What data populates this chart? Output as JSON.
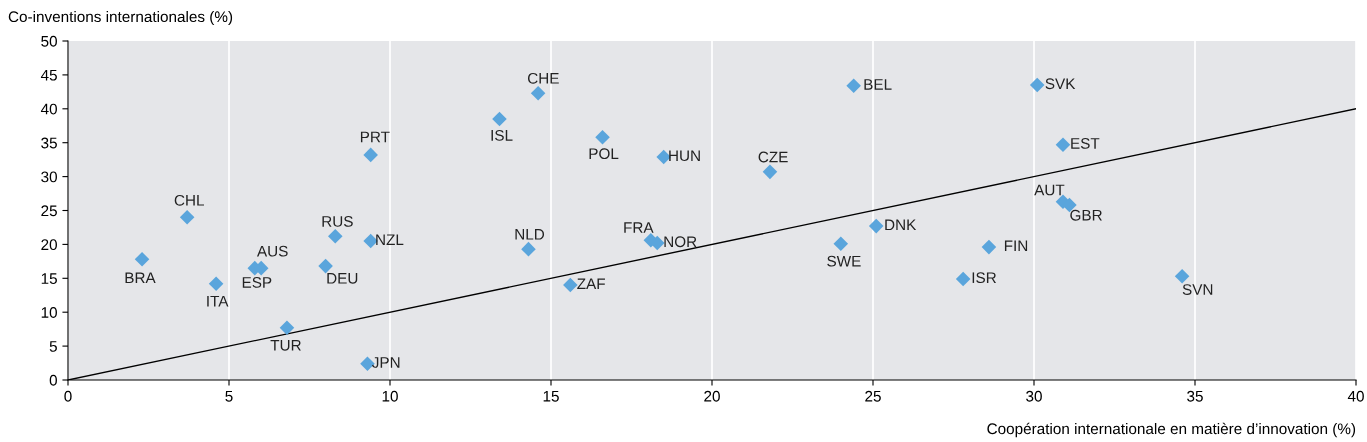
{
  "chart_data": {
    "type": "scatter",
    "xlabel": "Coopération internationale en matière d’innovation (%)",
    "ylabel": "Co-inventions internationales (%)",
    "xlim": [
      0,
      40
    ],
    "ylim": [
      0,
      50
    ],
    "xticks": [
      0,
      5,
      10,
      15,
      20,
      25,
      30,
      35,
      40
    ],
    "yticks": [
      0,
      5,
      10,
      15,
      20,
      25,
      30,
      35,
      40,
      45,
      50
    ],
    "grid": "x",
    "series": [
      {
        "color": "#5aa5dc",
        "marker": "diamond",
        "x": [
          2.3,
          3.7,
          4.6,
          5.8,
          6.0,
          6.8,
          8.0,
          8.3,
          9.3,
          9.4,
          9.4,
          13.4,
          14.3,
          14.6,
          15.6,
          16.6,
          18.1,
          18.3,
          18.5,
          21.8,
          24.0,
          24.4,
          25.1,
          27.8,
          28.6,
          30.1,
          30.9,
          30.9,
          31.1,
          34.6
        ],
        "values": [
          17.8,
          24.0,
          14.2,
          16.5,
          16.5,
          7.7,
          16.8,
          21.2,
          2.4,
          33.2,
          20.5,
          38.5,
          19.3,
          42.3,
          14.0,
          35.8,
          20.6,
          20.2,
          32.9,
          30.7,
          20.1,
          43.4,
          22.7,
          14.9,
          19.6,
          43.5,
          34.7,
          26.3,
          25.8,
          15.3
        ]
      },
      {
        "type": "line",
        "color": "#000000",
        "marker": "none",
        "x": [
          0,
          40
        ],
        "values": [
          0,
          40
        ]
      }
    ],
    "annotations": [
      {
        "text": "BRA",
        "x": 2.3,
        "y": 17.8
      },
      {
        "text": "CHL",
        "x": 3.7,
        "y": 24.0
      },
      {
        "text": "ITA",
        "x": 4.6,
        "y": 14.2
      },
      {
        "text": "ESP",
        "x": 5.8,
        "y": 16.5
      },
      {
        "text": "AUS",
        "x": 6.0,
        "y": 16.5
      },
      {
        "text": "TUR",
        "x": 6.8,
        "y": 7.7
      },
      {
        "text": "DEU",
        "x": 8.0,
        "y": 16.8
      },
      {
        "text": "RUS",
        "x": 8.3,
        "y": 21.2
      },
      {
        "text": "JPN",
        "x": 9.3,
        "y": 2.4
      },
      {
        "text": "PRT",
        "x": 9.4,
        "y": 33.2
      },
      {
        "text": "NZL",
        "x": 9.4,
        "y": 20.5
      },
      {
        "text": "ISL",
        "x": 13.4,
        "y": 38.5
      },
      {
        "text": "NLD",
        "x": 14.3,
        "y": 19.3
      },
      {
        "text": "CHE",
        "x": 14.6,
        "y": 42.3
      },
      {
        "text": "ZAF",
        "x": 15.6,
        "y": 14.0
      },
      {
        "text": "POL",
        "x": 16.6,
        "y": 35.8
      },
      {
        "text": "FRA",
        "x": 18.1,
        "y": 20.6
      },
      {
        "text": "NOR",
        "x": 18.3,
        "y": 20.2
      },
      {
        "text": "HUN",
        "x": 18.5,
        "y": 32.9
      },
      {
        "text": "CZE",
        "x": 21.8,
        "y": 30.7
      },
      {
        "text": "SWE",
        "x": 24.0,
        "y": 20.1
      },
      {
        "text": "BEL",
        "x": 24.4,
        "y": 43.4
      },
      {
        "text": "DNK",
        "x": 25.1,
        "y": 22.7
      },
      {
        "text": "ISR",
        "x": 27.8,
        "y": 14.9
      },
      {
        "text": "FIN",
        "x": 28.6,
        "y": 19.6
      },
      {
        "text": "SVK",
        "x": 30.1,
        "y": 43.5
      },
      {
        "text": "EST",
        "x": 30.9,
        "y": 34.7
      },
      {
        "text": "AUT",
        "x": 30.9,
        "y": 26.3
      },
      {
        "text": "GBR",
        "x": 31.1,
        "y": 25.8
      },
      {
        "text": "SVN",
        "x": 34.6,
        "y": 15.3
      }
    ]
  }
}
